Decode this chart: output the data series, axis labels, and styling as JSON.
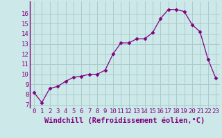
{
  "x": [
    0,
    1,
    2,
    3,
    4,
    5,
    6,
    7,
    8,
    9,
    10,
    11,
    12,
    13,
    14,
    15,
    16,
    17,
    18,
    19,
    20,
    21,
    22,
    23
  ],
  "y": [
    8.2,
    7.2,
    8.6,
    8.8,
    9.3,
    9.7,
    9.8,
    10.0,
    10.0,
    10.4,
    12.0,
    13.1,
    13.1,
    13.5,
    13.5,
    14.1,
    15.5,
    16.4,
    16.4,
    16.2,
    14.9,
    14.2,
    11.5,
    9.6
  ],
  "line_color": "#800080",
  "marker": "D",
  "markersize": 2.5,
  "linewidth": 0.9,
  "background_color": "#cce8e8",
  "grid_color": "#aacccc",
  "xlabel": "Windchill (Refroidissement éolien,°C)",
  "xlabel_fontsize": 7.5,
  "ylabel_ticks": [
    7,
    8,
    9,
    10,
    11,
    12,
    13,
    14,
    15,
    16
  ],
  "xtick_labels": [
    "0",
    "1",
    "2",
    "3",
    "4",
    "5",
    "6",
    "7",
    "8",
    "9",
    "10",
    "11",
    "12",
    "13",
    "14",
    "15",
    "16",
    "17",
    "18",
    "19",
    "20",
    "21",
    "22",
    "23"
  ],
  "ylim": [
    6.7,
    17.2
  ],
  "xlim": [
    -0.5,
    23.5
  ],
  "tick_color": "#800080",
  "tick_fontsize": 6.5,
  "spine_color": "#800080"
}
